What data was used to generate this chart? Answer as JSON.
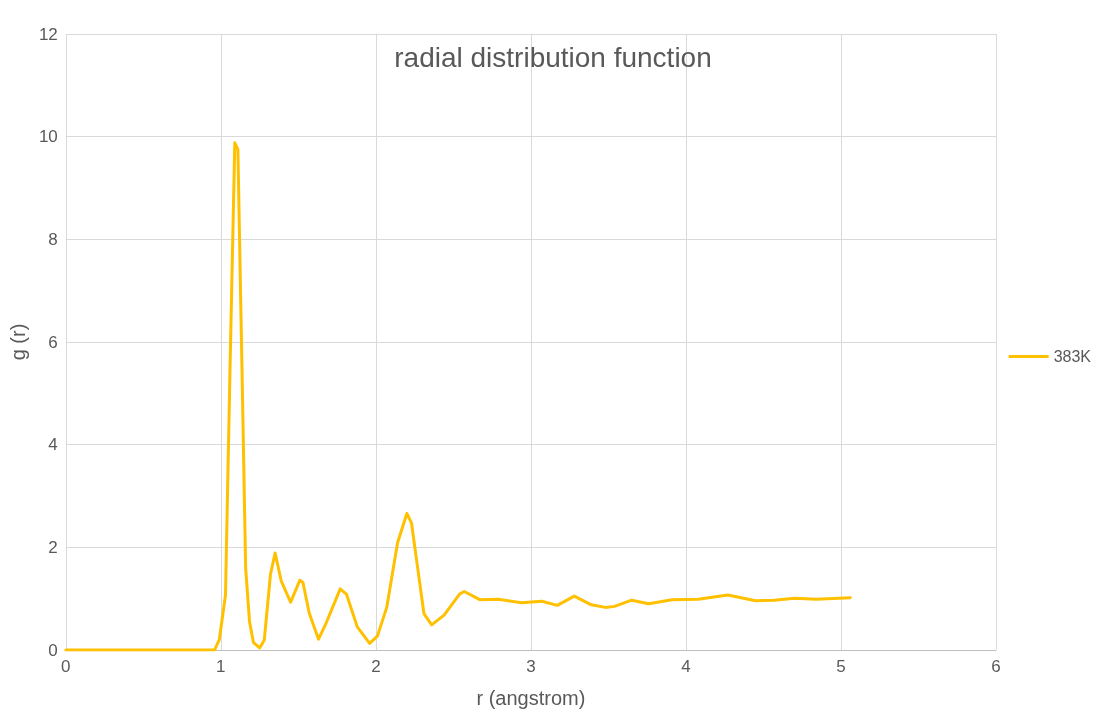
{
  "chart_data": {
    "type": "line",
    "title": "radial distribution function",
    "xlabel": "r (angstrom)",
    "ylabel": "g (r)",
    "xlim": [
      0,
      6
    ],
    "xticks": [
      0,
      1,
      2,
      3,
      4,
      5,
      6
    ],
    "ylim": [
      0,
      12
    ],
    "yticks": [
      0,
      2,
      4,
      6,
      8,
      10,
      12
    ],
    "grid": true,
    "legend": "right",
    "marker": "none",
    "line_style": "solid",
    "series": [
      {
        "name": "383K",
        "color": "#ffc000",
        "x": [
          0,
          0.5,
          0.96,
          0.99,
          1.03,
          1.06,
          1.09,
          1.11,
          1.14,
          1.16,
          1.185,
          1.21,
          1.25,
          1.28,
          1.32,
          1.35,
          1.39,
          1.45,
          1.51,
          1.53,
          1.57,
          1.63,
          1.68,
          1.77,
          1.81,
          1.88,
          1.96,
          2.01,
          2.07,
          2.14,
          2.2,
          2.23,
          2.27,
          2.31,
          2.36,
          2.44,
          2.54,
          2.57,
          2.67,
          2.79,
          2.94,
          3.07,
          3.17,
          3.28,
          3.39,
          3.48,
          3.54,
          3.65,
          3.76,
          3.91,
          4.08,
          4.27,
          4.45,
          4.57,
          4.7,
          4.84,
          5.06
        ],
        "values": [
          0,
          0,
          0,
          0.2,
          1.07,
          5.6,
          9.88,
          9.75,
          4.9,
          1.6,
          0.55,
          0.15,
          0.04,
          0.19,
          1.47,
          1.89,
          1.34,
          0.93,
          1.36,
          1.31,
          0.72,
          0.21,
          0.53,
          1.19,
          1.09,
          0.45,
          0.13,
          0.27,
          0.83,
          2.09,
          2.66,
          2.47,
          1.59,
          0.71,
          0.49,
          0.68,
          1.09,
          1.14,
          0.98,
          0.99,
          0.92,
          0.95,
          0.87,
          1.05,
          0.88,
          0.83,
          0.85,
          0.97,
          0.9,
          0.98,
          0.99,
          1.07,
          0.96,
          0.97,
          1.01,
          0.99,
          1.02
        ]
      }
    ]
  }
}
